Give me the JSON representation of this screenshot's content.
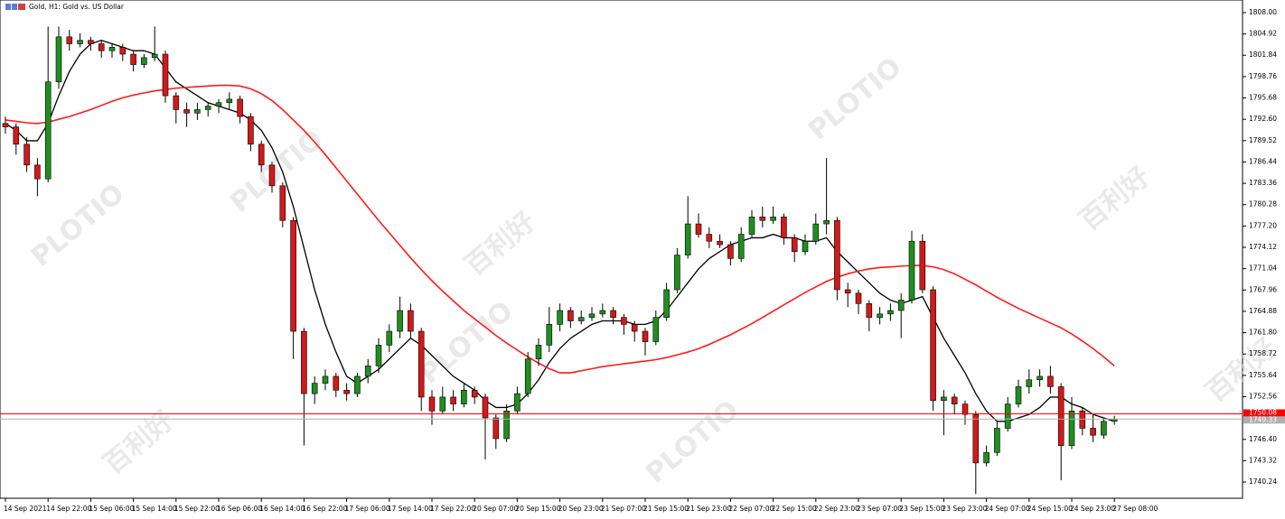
{
  "chart_data": {
    "type": "candlestick",
    "title": "Gold, H1: Gold vs. US Dollar",
    "watermark": [
      "PLOTIO",
      "百利好"
    ],
    "up_color": "#1f8f1f",
    "down_color": "#d11a1a",
    "ylim": [
      1737.9,
      1809.82
    ],
    "yticks": [
      {
        "value": 1808,
        "label": "1808.00"
      },
      1804.92,
      1801.84,
      1798.76,
      1795.68,
      {
        "value": 1792.6,
        "label": "1792.60"
      },
      1789.52,
      1786.44,
      1783.36,
      1780.28,
      {
        "value": 1777.2,
        "label": "1777.20"
      },
      1774.12,
      1771.04,
      1767.96,
      1764.88,
      {
        "value": 1761.8,
        "label": "1761.80"
      },
      1758.72,
      1755.64,
      1752.56,
      {
        "value": 1746.4,
        "label": "1746.40"
      },
      1743.32,
      1740.24
    ],
    "price_lines": [
      {
        "value": 1750.08,
        "color": "#ff0000"
      },
      {
        "value": 1749.33,
        "color": "#b0b0b0"
      }
    ],
    "categories": [
      "14 Sep 2021",
      null,
      null,
      null,
      "14 Sep 22:00",
      null,
      null,
      null,
      "15 Sep 06:00",
      null,
      null,
      null,
      "15 Sep 14:00",
      null,
      null,
      null,
      "15 Sep 22:00",
      null,
      null,
      null,
      "16 Sep 06:00",
      null,
      null,
      null,
      "16 Sep 14:00",
      null,
      null,
      null,
      "16 Sep 22:00",
      null,
      null,
      null,
      "17 Sep 06:00",
      null,
      null,
      null,
      "17 Sep 14:00",
      null,
      null,
      null,
      "17 Sep 22:00",
      null,
      null,
      null,
      "20 Sep 07:00",
      null,
      null,
      null,
      "20 Sep 15:00",
      null,
      null,
      null,
      "20 Sep 23:00",
      null,
      null,
      null,
      "21 Sep 07:00",
      null,
      null,
      null,
      "21 Sep 15:00",
      null,
      null,
      null,
      "21 Sep 23:00",
      null,
      null,
      null,
      "22 Sep 07:00",
      null,
      null,
      null,
      "22 Sep 15:00",
      null,
      null,
      null,
      "22 Sep 23:00",
      null,
      null,
      null,
      "23 Sep 07:00",
      null,
      null,
      null,
      "23 Sep 15:00",
      null,
      null,
      null,
      "23 Sep 23:00",
      null,
      null,
      null,
      "24 Sep 07:00",
      null,
      null,
      null,
      "24 Sep 15:00",
      null,
      null,
      null,
      "24 Sep 23:00",
      null,
      null,
      null,
      "27 Sep 08:00"
    ],
    "ohlc": [
      [
        1792,
        1793,
        1790.5,
        1791.5
      ],
      [
        1791.5,
        1792,
        1787.5,
        1789
      ],
      [
        1789,
        1790,
        1785,
        1786
      ],
      [
        1786,
        1787,
        1781.5,
        1784
      ],
      [
        1784,
        1806,
        1783.5,
        1798
      ],
      [
        1798,
        1806,
        1797,
        1804.5
      ],
      [
        1804.5,
        1805.5,
        1802.5,
        1803.5
      ],
      [
        1803.5,
        1805,
        1803,
        1804
      ],
      [
        1804,
        1804.5,
        1802.5,
        1803.5
      ],
      [
        1803.5,
        1804,
        1801.5,
        1802.5
      ],
      [
        1802.5,
        1803.5,
        1801.5,
        1803
      ],
      [
        1803,
        1803.5,
        1801,
        1802
      ],
      [
        1802,
        1802.5,
        1799.5,
        1800.5
      ],
      [
        1800.5,
        1802,
        1800,
        1801.5
      ],
      [
        1801.5,
        1806,
        1801,
        1802
      ],
      [
        1802,
        1802.5,
        1795,
        1796
      ],
      [
        1796,
        1796.5,
        1792,
        1794
      ],
      [
        1794,
        1795,
        1791.5,
        1793.5
      ],
      [
        1793.5,
        1795,
        1792.5,
        1794
      ],
      [
        1794,
        1795,
        1793,
        1794.5
      ],
      [
        1794.5,
        1795.5,
        1793.5,
        1795
      ],
      [
        1795,
        1796.5,
        1794,
        1795.5
      ],
      [
        1795.5,
        1796,
        1792,
        1793
      ],
      [
        1793,
        1793.5,
        1788,
        1789
      ],
      [
        1789,
        1789.5,
        1785,
        1786
      ],
      [
        1786,
        1786.5,
        1782,
        1783
      ],
      [
        1783,
        1783.5,
        1777,
        1778
      ],
      [
        1778,
        1778.5,
        1758,
        1762
      ],
      [
        1762,
        1762.5,
        1745.5,
        1753
      ],
      [
        1753,
        1755.5,
        1751.5,
        1754.5
      ],
      [
        1754.5,
        1756.5,
        1753.5,
        1755.5
      ],
      [
        1755.5,
        1756,
        1752.5,
        1753.5
      ],
      [
        1753.5,
        1754.5,
        1752,
        1753
      ],
      [
        1753,
        1756,
        1752.5,
        1755.5
      ],
      [
        1755.5,
        1758,
        1754.5,
        1757
      ],
      [
        1757,
        1761,
        1756,
        1760
      ],
      [
        1760,
        1763,
        1759,
        1762
      ],
      [
        1762,
        1767,
        1761,
        1765
      ],
      [
        1765,
        1766,
        1761,
        1762
      ],
      [
        1762,
        1762.5,
        1750.5,
        1752.5
      ],
      [
        1752.5,
        1753.5,
        1748.5,
        1750.5
      ],
      [
        1750.5,
        1754,
        1750,
        1752.5
      ],
      [
        1752.5,
        1753.5,
        1750.5,
        1751.5
      ],
      [
        1751.5,
        1754.5,
        1751,
        1753.5
      ],
      [
        1753.5,
        1754,
        1751.5,
        1752.5
      ],
      [
        1752.5,
        1753,
        1743.5,
        1749.5
      ],
      [
        1749.5,
        1750,
        1745,
        1746.5
      ],
      [
        1746.5,
        1751.5,
        1746,
        1750.5
      ],
      [
        1750.5,
        1754,
        1750,
        1753
      ],
      [
        1753,
        1759,
        1752.5,
        1758
      ],
      [
        1758,
        1761,
        1757,
        1760
      ],
      [
        1760,
        1765.5,
        1759,
        1763
      ],
      [
        1763,
        1766,
        1762,
        1765
      ],
      [
        1765,
        1765.5,
        1762.5,
        1763.5
      ],
      [
        1763.5,
        1765,
        1763,
        1764
      ],
      [
        1764,
        1765.5,
        1763.5,
        1764.5
      ],
      [
        1764.5,
        1766,
        1764,
        1765
      ],
      [
        1765,
        1765.5,
        1763,
        1764
      ],
      [
        1764,
        1764.5,
        1761.5,
        1763
      ],
      [
        1763,
        1763.5,
        1760.5,
        1762
      ],
      [
        1762,
        1762.5,
        1758.5,
        1760.5
      ],
      [
        1760.5,
        1765,
        1760,
        1764
      ],
      [
        1764,
        1769,
        1763.5,
        1768
      ],
      [
        1768,
        1774,
        1767.5,
        1773
      ],
      [
        1773,
        1781.5,
        1772.5,
        1777.5
      ],
      [
        1777.5,
        1779,
        1775.5,
        1776
      ],
      [
        1776,
        1777,
        1774,
        1775
      ],
      [
        1775,
        1776,
        1774,
        1774.5
      ],
      [
        1774.5,
        1775,
        1771.5,
        1772.5
      ],
      [
        1772.5,
        1777,
        1772,
        1776
      ],
      [
        1776,
        1779.5,
        1775.5,
        1778.5
      ],
      [
        1778.5,
        1780,
        1777,
        1778
      ],
      [
        1778,
        1780,
        1777.5,
        1778.5
      ],
      [
        1778.5,
        1779,
        1774.5,
        1775.5
      ],
      [
        1775.5,
        1776,
        1772,
        1773.5
      ],
      [
        1773.5,
        1776,
        1773,
        1775
      ],
      [
        1775,
        1779,
        1774.5,
        1777.5
      ],
      [
        1777.5,
        1787,
        1776,
        1778
      ],
      [
        1778,
        1778.5,
        1766.5,
        1768
      ],
      [
        1768,
        1769,
        1765.5,
        1767.5
      ],
      [
        1767.5,
        1768,
        1764.5,
        1766
      ],
      [
        1766,
        1766.5,
        1762,
        1764
      ],
      [
        1764,
        1765.5,
        1763,
        1764.5
      ],
      [
        1764.5,
        1766,
        1763.5,
        1765
      ],
      [
        1765,
        1767.5,
        1761,
        1766.5
      ],
      [
        1766.5,
        1776.5,
        1766,
        1775
      ],
      [
        1775,
        1776,
        1767.5,
        1768
      ],
      [
        1768,
        1768.5,
        1750.5,
        1752
      ],
      [
        1752,
        1753.5,
        1747,
        1752.5
      ],
      [
        1752.5,
        1753,
        1750,
        1751.5
      ],
      [
        1751.5,
        1752,
        1748.5,
        1750
      ],
      [
        1750,
        1750.5,
        1738.5,
        1743
      ],
      [
        1743,
        1745.5,
        1742.5,
        1744.5
      ],
      [
        1744.5,
        1749,
        1744,
        1748
      ],
      [
        1748,
        1752.5,
        1747.5,
        1751.5
      ],
      [
        1751.5,
        1755,
        1751,
        1754
      ],
      [
        1754,
        1756.5,
        1753,
        1755
      ],
      [
        1755,
        1756.5,
        1754,
        1755.5
      ],
      [
        1755.5,
        1757,
        1753,
        1754
      ],
      [
        1754,
        1754.5,
        1740.5,
        1745.5
      ],
      [
        1745.5,
        1752.5,
        1745,
        1750.5
      ],
      [
        1750.5,
        1751,
        1747,
        1748
      ],
      [
        1748,
        1750,
        1746,
        1747
      ],
      [
        1747,
        1749.5,
        1746.5,
        1749
      ],
      [
        1749,
        1749.8,
        1748.5,
        1749.33
      ]
    ],
    "series": [
      {
        "color": "#000000",
        "values": [
          1792,
          1791,
          1789.5,
          1789.5,
          1792,
          1796,
          1799.5,
          1802,
          1803.5,
          1804,
          1803.5,
          1803,
          1802.5,
          1802.5,
          1802,
          1800,
          1798,
          1797,
          1796,
          1795,
          1794.5,
          1794,
          1793.5,
          1792.5,
          1791,
          1788.5,
          1785,
          1780,
          1774,
          1768,
          1763,
          1759,
          1755.5,
          1754.5,
          1755.5,
          1756.5,
          1758,
          1759.5,
          1761,
          1760,
          1758.5,
          1757,
          1755.5,
          1754.5,
          1753.5,
          1752,
          1751,
          1751,
          1751.5,
          1753,
          1755,
          1757.5,
          1759.5,
          1761,
          1762,
          1763,
          1763.5,
          1763.5,
          1763.5,
          1763,
          1763,
          1763.5,
          1765,
          1767,
          1769,
          1771,
          1772.5,
          1773.5,
          1774.5,
          1775,
          1775.5,
          1775.5,
          1776,
          1775.5,
          1775.5,
          1775,
          1775,
          1775.5,
          1773.5,
          1772,
          1770.5,
          1769,
          1767.5,
          1766.5,
          1766,
          1766.5,
          1767,
          1764,
          1761,
          1758.5,
          1756,
          1753,
          1750.5,
          1749,
          1749,
          1749.5,
          1750,
          1751,
          1752.5,
          1752.5,
          1751.5,
          1751,
          1750,
          1749.5,
          1749
        ]
      },
      {
        "color": "#ff1a1a",
        "values": [
          1792.5,
          1792.3,
          1792.1,
          1792,
          1792.2,
          1792.6,
          1793,
          1793.5,
          1794,
          1794.6,
          1795.2,
          1795.7,
          1796.1,
          1796.4,
          1796.7,
          1796.9,
          1797.1,
          1797.2,
          1797.3,
          1797.4,
          1797.5,
          1797.5,
          1797.4,
          1797,
          1796.3,
          1795.3,
          1794,
          1792.5,
          1791,
          1789.3,
          1787.5,
          1785.6,
          1783.7,
          1781.8,
          1779.9,
          1778,
          1776.2,
          1774.4,
          1772.6,
          1770.9,
          1769.3,
          1767.8,
          1766.4,
          1765,
          1763.8,
          1762.6,
          1761.4,
          1760.3,
          1759.3,
          1758.3,
          1757.4,
          1756.6,
          1756,
          1756,
          1756.3,
          1756.6,
          1756.9,
          1757.1,
          1757.3,
          1757.5,
          1757.7,
          1757.9,
          1758.2,
          1758.6,
          1759,
          1759.5,
          1760.1,
          1760.8,
          1761.5,
          1762.3,
          1763.1,
          1764,
          1764.9,
          1765.8,
          1766.7,
          1767.6,
          1768.4,
          1769.2,
          1769.8,
          1770.3,
          1770.7,
          1771,
          1771.2,
          1771.3,
          1771.4,
          1771.5,
          1771.5,
          1771.3,
          1770.9,
          1770.3,
          1769.5,
          1768.7,
          1767.8,
          1766.9,
          1766.1,
          1765.3,
          1764.6,
          1763.9,
          1763.2,
          1762.5,
          1761.6,
          1760.6,
          1759.5,
          1758.3,
          1757
        ]
      }
    ]
  }
}
